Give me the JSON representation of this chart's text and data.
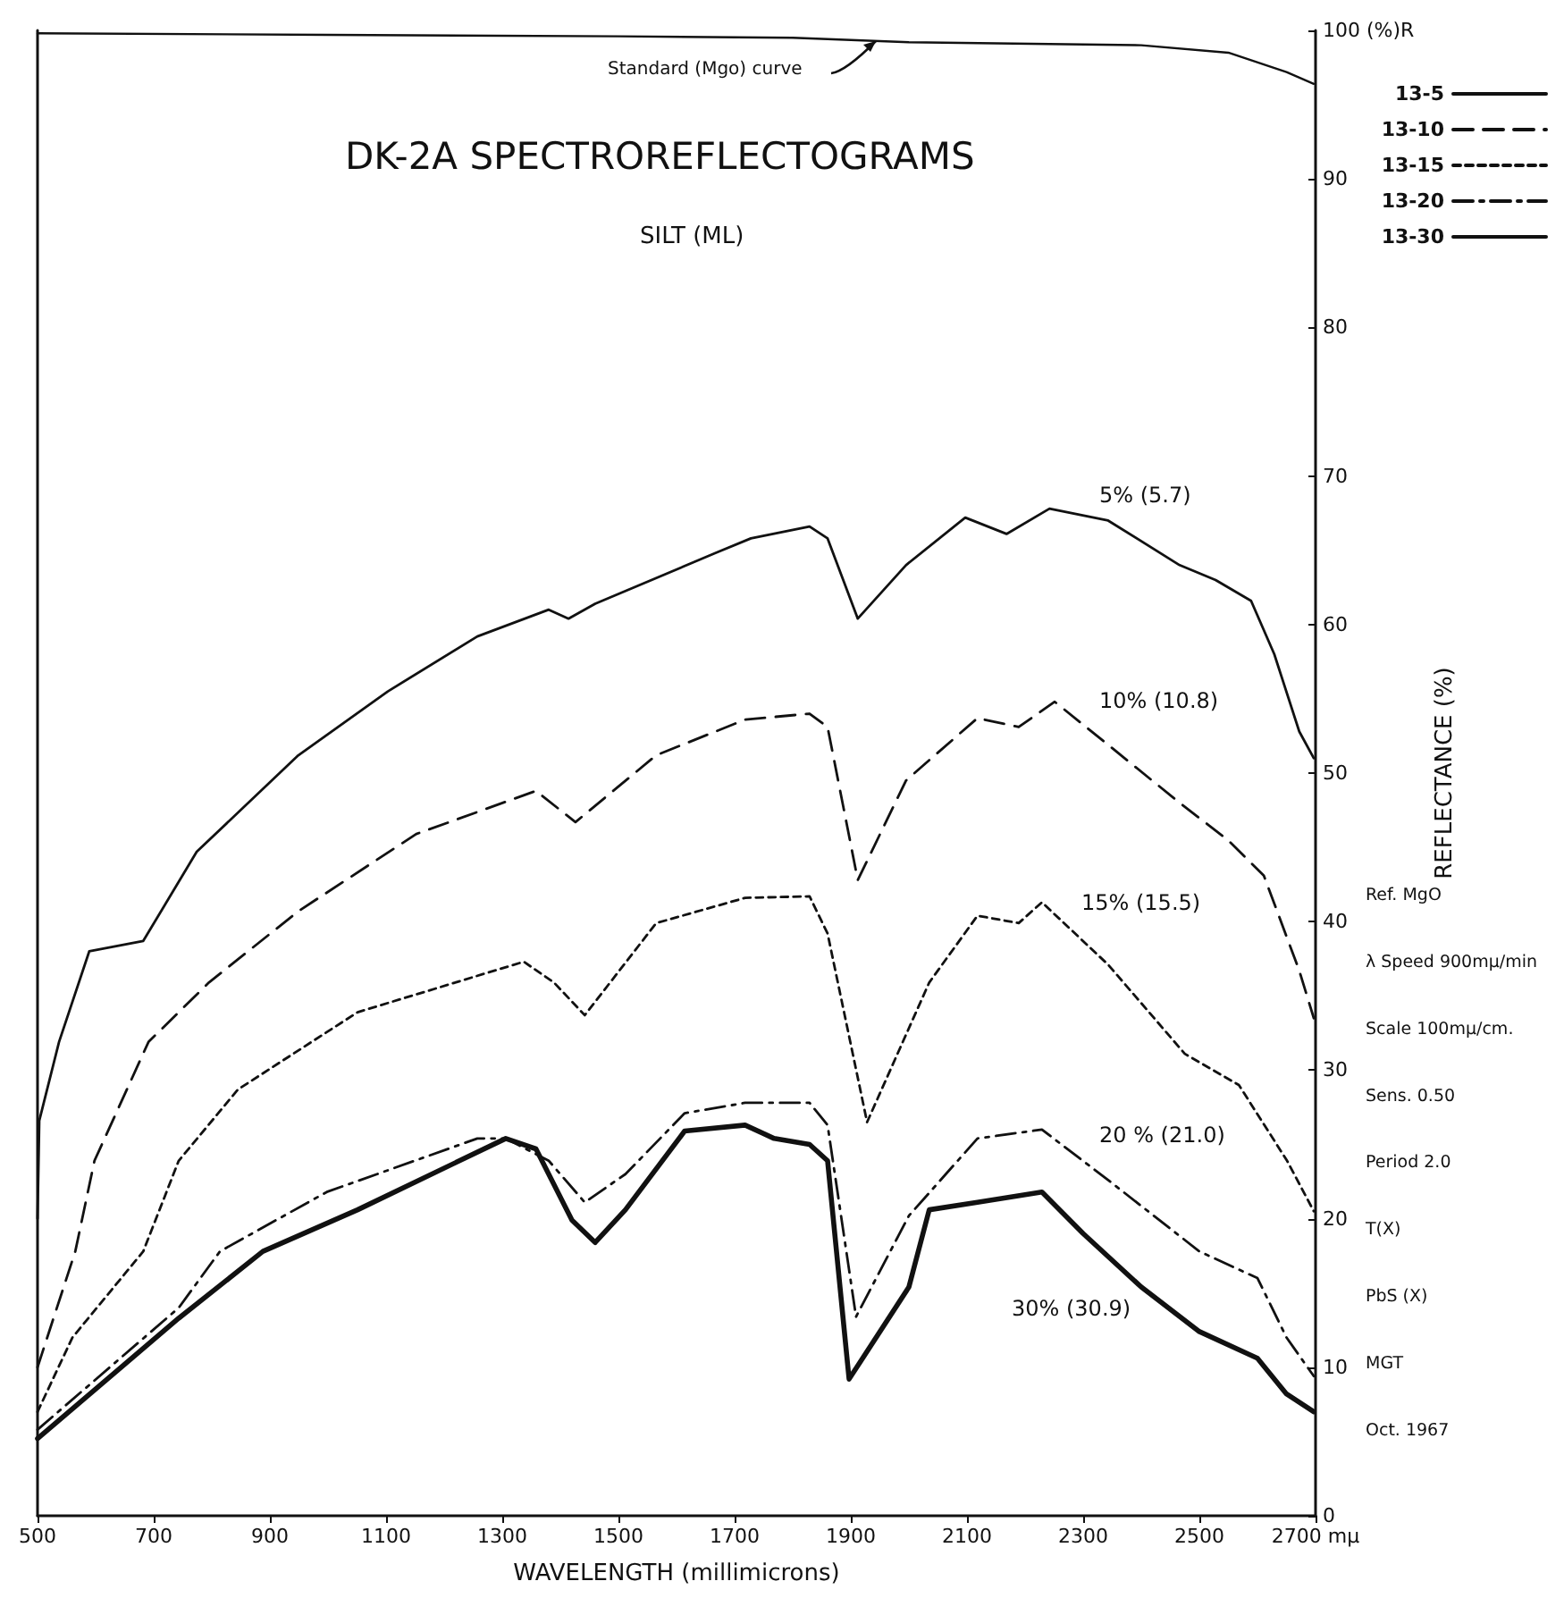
{
  "chart_data": {
    "type": "line",
    "title": "DK-2A SPECTROREFLECTOGRAMS",
    "subtitle": "SILT (ML)",
    "xlabel": "WAVELENGTH (millimicrons)",
    "ylabel": "REFLECTANCE (%)",
    "xlim": [
      500,
      2700
    ],
    "xticks": [
      500,
      700,
      900,
      1100,
      1300,
      1500,
      1700,
      1900,
      2100,
      2300,
      2500,
      {
        "value": 2700,
        "label": "2700 mµ"
      }
    ],
    "ylim": [
      0,
      100
    ],
    "yticks": [
      0,
      10,
      20,
      30,
      40,
      50,
      60,
      70,
      80,
      90,
      {
        "value": 100,
        "label": "100 (%)R"
      }
    ],
    "legend": "top right",
    "series": [
      {
        "name": "13-5",
        "color": "#111111",
        "line_style": "solid",
        "x": [
          500,
          503,
          537,
          589,
          682,
          774,
          949,
          1103,
          1257,
          1380,
          1414,
          1460,
          1666,
          1728,
          1829,
          1860,
          1912,
          1995,
          2097,
          2168,
          2242,
          2343,
          2466,
          2528,
          2589,
          2629,
          2672,
          2697
        ],
        "values": [
          20,
          26.6,
          31.9,
          38,
          38.7,
          44.7,
          51.2,
          55.5,
          59.2,
          61,
          60.4,
          61.4,
          64.8,
          65.8,
          66.6,
          65.8,
          60.4,
          64,
          67.2,
          66.1,
          67.8,
          67,
          64,
          63,
          61.6,
          58,
          52.8,
          51
        ]
      },
      {
        "name": "13-10",
        "color": "#111111",
        "line_style": "dashed",
        "x": [
          500,
          565,
          598,
          691,
          795,
          949,
          1152,
          1358,
          1426,
          1565,
          1718,
          1829,
          1860,
          1912,
          1995,
          2118,
          2189,
          2251,
          2343,
          2466,
          2549,
          2611,
          2672,
          2697
        ],
        "values": [
          10,
          17.8,
          23.9,
          31.9,
          35.9,
          40.7,
          45.9,
          48.8,
          46.7,
          51.2,
          53.6,
          54,
          53.1,
          42.8,
          49.5,
          53.7,
          53.1,
          54.8,
          51.9,
          48,
          45.5,
          43.1,
          36.7,
          33.5
        ]
      },
      {
        "name": "13-15",
        "color": "#111111",
        "line_style": "dotted",
        "x": [
          500,
          560,
          682,
          743,
          845,
          1051,
          1337,
          1389,
          1442,
          1565,
          1718,
          1829,
          1860,
          1928,
          2035,
          2118,
          2189,
          2229,
          2343,
          2475,
          2568,
          2651,
          2697
        ],
        "values": [
          7,
          12,
          17.8,
          23.9,
          28.7,
          33.9,
          37.3,
          35.9,
          33.7,
          39.9,
          41.6,
          41.7,
          39.2,
          26.5,
          35.9,
          40.4,
          39.9,
          41.3,
          37.1,
          31.1,
          29,
          23.9,
          20.5
        ]
      },
      {
        "name": "13-20",
        "color": "#111111",
        "line_style": "dashdot",
        "x": [
          500,
          743,
          814,
          998,
          1257,
          1306,
          1380,
          1442,
          1512,
          1614,
          1718,
          1829,
          1860,
          1909,
          2000,
          2118,
          2229,
          2343,
          2500,
          2600,
          2650,
          2697
        ],
        "values": [
          5.8,
          14,
          17.8,
          21.8,
          25.4,
          25.4,
          23.9,
          21.1,
          23,
          27.1,
          27.8,
          27.8,
          26.3,
          13.4,
          20.2,
          25.4,
          26,
          22.6,
          17.8,
          16,
          12,
          9.4
        ]
      },
      {
        "name": "13-30",
        "color": "#111111",
        "line_style": "solid",
        "x": [
          500,
          743,
          888,
          1051,
          1306,
          1358,
          1420,
          1460,
          1512,
          1614,
          1718,
          1768,
          1829,
          1860,
          1897,
          2000,
          2035,
          2118,
          2229,
          2300,
          2400,
          2500,
          2600,
          2650,
          2697
        ],
        "values": [
          5.2,
          13.3,
          17.8,
          20.6,
          25.4,
          24.7,
          19.9,
          18.4,
          20.6,
          25.9,
          26.3,
          25.4,
          25,
          23.9,
          9.2,
          15.4,
          20.6,
          21.1,
          21.8,
          19,
          15.4,
          12.4,
          10.6,
          8.2,
          7
        ]
      },
      {
        "color": "#111111",
        "line_style": "solid",
        "x": [
          500,
          1000,
          1500,
          1800,
          2000,
          2400,
          2550,
          2650,
          2697
        ],
        "values": [
          99.8,
          99.7,
          99.6,
          99.5,
          99.2,
          99,
          98.5,
          97.2,
          96.4
        ]
      }
    ],
    "annotations": [
      "Standard (Mgo) curve",
      "5% (5.7)",
      "10% (10.8)",
      "15% (15.5)",
      "20 % (21.0)",
      "30% (30.9)",
      "Ref. MgO",
      "λ Speed 900mµ/min",
      "Scale 100mµ/cm.",
      "Sens. 0.50",
      "Period 2.0",
      "T(X)",
      "PbS (X)",
      "MGT",
      "Oct. 1967"
    ]
  }
}
